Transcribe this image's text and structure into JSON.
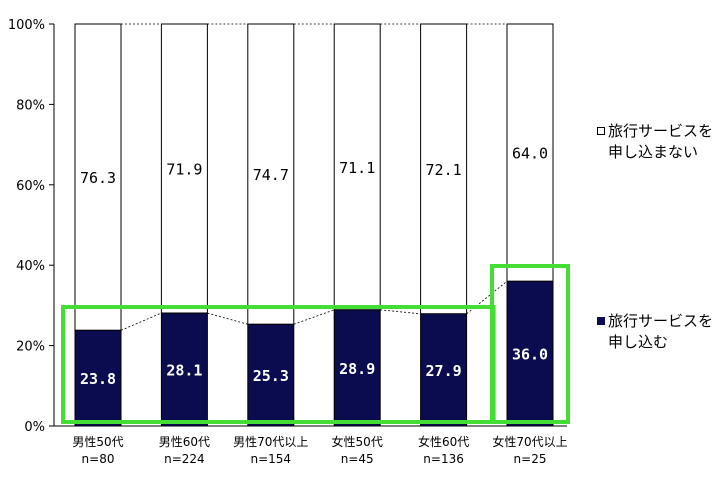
{
  "chart_data": {
    "type": "bar",
    "stacked": true,
    "categories": [
      {
        "line1": "男性50代",
        "line2": "n=80"
      },
      {
        "line1": "男性60代",
        "line2": "n=224"
      },
      {
        "line1": "男性70代以上",
        "line2": "n=154"
      },
      {
        "line1": "女性50代",
        "line2": "n=45"
      },
      {
        "line1": "女性60代",
        "line2": "n=136"
      },
      {
        "line1": "女性70代以上",
        "line2": "n=25"
      }
    ],
    "series": [
      {
        "name": "旅行サービスを申し込む",
        "values": [
          23.8,
          28.1,
          25.3,
          28.9,
          27.9,
          36.0
        ],
        "color": "#0b0b50"
      },
      {
        "name": "旅行サービスを申し込まない",
        "values": [
          76.3,
          71.9,
          74.7,
          71.1,
          72.1,
          64.0
        ],
        "color": "#ffffff"
      }
    ],
    "value_labels": {
      "series0": [
        "23.8",
        "28.1",
        "25.3",
        "28.9",
        "27.9",
        "36.0"
      ],
      "series1": [
        "76.3",
        "71.9",
        "74.7",
        "71.1",
        "72.1",
        "64.0"
      ]
    },
    "yticks": [
      "0%",
      "20%",
      "40%",
      "60%",
      "80%",
      "100%"
    ],
    "ylim": [
      0,
      100
    ],
    "grid": false,
    "legend_position": "right",
    "highlight_color": "#44dd33"
  },
  "legend": [
    {
      "line1": "旅行サービスを",
      "line2": "申し込まない",
      "swatch": "#ffffff"
    },
    {
      "line1": "旅行サービスを",
      "line2": "申し込む",
      "swatch": "#0b0b50"
    }
  ]
}
